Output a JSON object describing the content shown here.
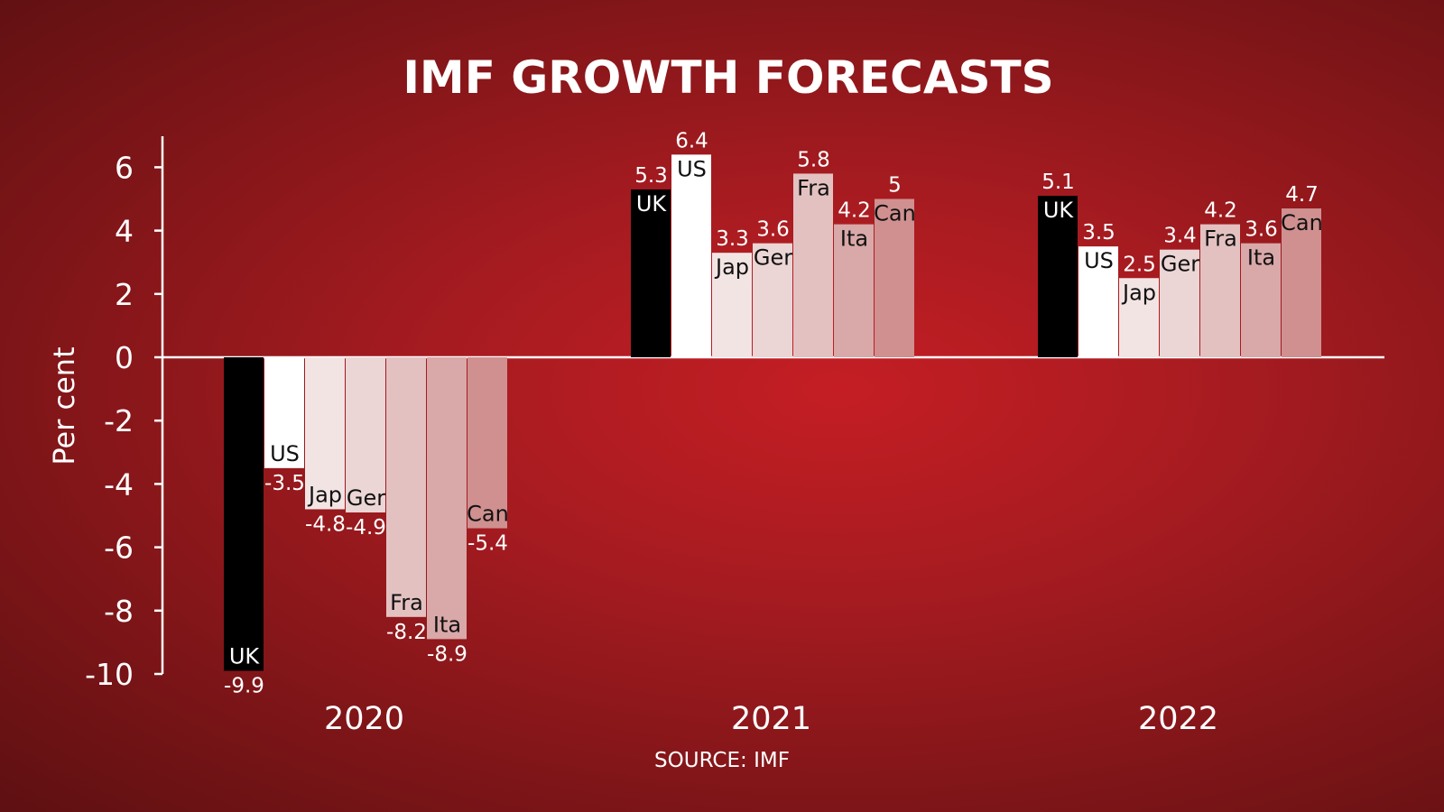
{
  "chart_data": {
    "type": "bar",
    "title": "IMF GROWTH FORECASTS",
    "ylabel": "Per cent",
    "xlabel": "",
    "source": "SOURCE: IMF",
    "ylim": [
      -10,
      7
    ],
    "yticks": [
      6,
      4,
      2,
      0,
      -2,
      -4,
      -6,
      -8,
      -10
    ],
    "grid": false,
    "legend": "none",
    "categories": [
      "2020",
      "2021",
      "2022"
    ],
    "series": [
      {
        "name": "UK",
        "color": "#000000",
        "label_color": "#ffffff",
        "values": [
          -9.9,
          5.3,
          5.1
        ]
      },
      {
        "name": "US",
        "color": "#ffffff",
        "label_color": "#111111",
        "values": [
          -3.5,
          6.4,
          3.5
        ]
      },
      {
        "name": "Jap",
        "color": "#f3e4e4",
        "label_color": "#111111",
        "values": [
          -4.8,
          3.3,
          2.5
        ]
      },
      {
        "name": "Ger",
        "color": "#ecd5d5",
        "label_color": "#111111",
        "values": [
          -4.9,
          3.6,
          3.4
        ]
      },
      {
        "name": "Fra",
        "color": "#e4c1c1",
        "label_color": "#111111",
        "values": [
          -8.2,
          5.8,
          4.2
        ]
      },
      {
        "name": "Ita",
        "color": "#d9a8a8",
        "label_color": "#111111",
        "values": [
          -8.9,
          4.2,
          3.6
        ]
      },
      {
        "name": "Can",
        "color": "#d09090",
        "label_color": "#111111",
        "values": [
          -5.4,
          5,
          4.7
        ]
      }
    ],
    "value_labels": [
      [
        "-9.9",
        "5.3",
        "5.1"
      ],
      [
        "-3.5",
        "6.4",
        "3.5"
      ],
      [
        "-4.8",
        "3.3",
        "2.5"
      ],
      [
        "-4.9",
        "3.6",
        "3.4"
      ],
      [
        "-8.2",
        "5.8",
        "4.2"
      ],
      [
        "-8.9",
        "4.2",
        "3.6"
      ],
      [
        "-5.4",
        "5",
        "4.7"
      ]
    ]
  }
}
